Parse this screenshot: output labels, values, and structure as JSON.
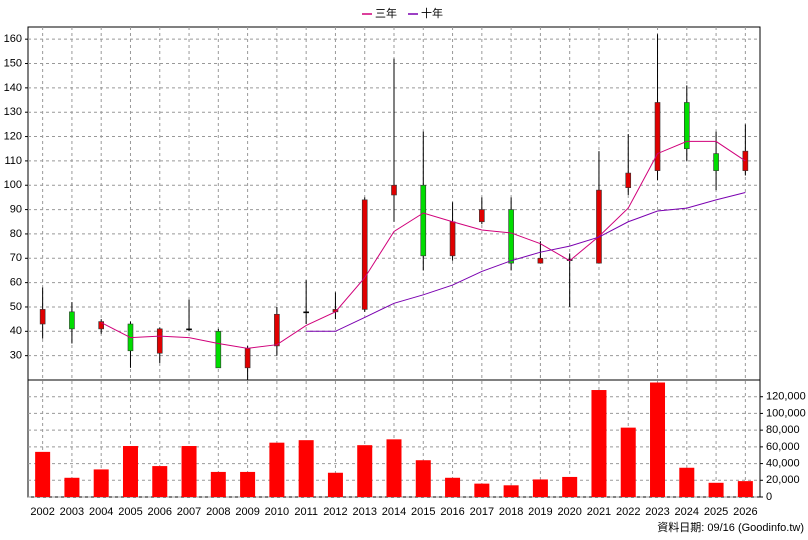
{
  "chart_data": {
    "type": "candlestick",
    "categories": [
      "2002",
      "2003",
      "2004",
      "2005",
      "2006",
      "2007",
      "2008",
      "2009",
      "2010",
      "2011",
      "2012",
      "2013",
      "2014",
      "2015",
      "2016",
      "2017",
      "2018",
      "2019",
      "2020",
      "2021",
      "2022",
      "2023",
      "2024",
      "2025",
      "2026"
    ],
    "open": [
      43,
      48,
      41,
      43,
      31,
      41,
      40,
      25,
      34,
      48,
      48,
      49,
      96,
      100,
      71,
      85,
      90,
      68,
      69.5,
      68,
      99,
      106,
      134,
      113,
      106
    ],
    "high": [
      58,
      52,
      45,
      44,
      41.5,
      53,
      41,
      34,
      50,
      61,
      56,
      95,
      152,
      122,
      93,
      95,
      95,
      77,
      72,
      114,
      121,
      162,
      141,
      122,
      125
    ],
    "low": [
      37,
      35,
      39,
      25,
      27,
      40,
      25,
      20,
      30,
      43,
      45,
      48,
      85,
      65,
      69,
      84,
      65,
      68,
      50,
      68,
      96,
      102,
      110,
      98,
      104
    ],
    "close": [
      49,
      41,
      44,
      32,
      41,
      41,
      25,
      33,
      47,
      48,
      49,
      94,
      100,
      71,
      85,
      90,
      68,
      70,
      69.5,
      98,
      105,
      134,
      115,
      106,
      114
    ],
    "up_color": "#e00000",
    "down_color": "#00dd00",
    "ylim": [
      20,
      165
    ],
    "yticks": [
      30,
      40,
      50,
      60,
      70,
      80,
      90,
      100,
      110,
      120,
      130,
      140,
      150,
      160
    ],
    "grid": true,
    "series": [
      {
        "name": "三年",
        "color": "#d0007a",
        "values": [
          null,
          null,
          43.6,
          37.4,
          38,
          37.4,
          35,
          33,
          34.5,
          42.4,
          48,
          62,
          81,
          88.6,
          85,
          81.6,
          80.4,
          76,
          69,
          79,
          90.6,
          113,
          118,
          118,
          110
        ]
      },
      {
        "name": "十年",
        "color": "#7a00b0",
        "values": [
          null,
          null,
          null,
          null,
          null,
          null,
          null,
          null,
          null,
          40,
          40,
          45.7,
          51.5,
          55,
          59,
          64.6,
          69,
          72.5,
          75,
          78.7,
          85,
          89.4,
          90.6,
          94,
          97
        ]
      }
    ],
    "volume": {
      "type": "bar",
      "color": "#ff0000",
      "values": [
        54000,
        23000,
        33000,
        61000,
        37000,
        61000,
        30000,
        30000,
        65000,
        68000,
        29000,
        62000,
        69000,
        44000,
        23000,
        16000,
        14000,
        21000,
        24000,
        128000,
        83000,
        137000,
        35000,
        17000,
        19000
      ],
      "ylim": [
        0,
        140000
      ],
      "yticks": [
        0,
        {
          "value": 20000,
          "label": "20,000"
        },
        {
          "value": 40000,
          "label": "40,000"
        },
        {
          "value": 60000,
          "label": "60,000"
        },
        {
          "value": 80000,
          "label": "80,000"
        },
        {
          "value": 100000,
          "label": "100,000"
        },
        {
          "value": 120000,
          "label": "120,000"
        }
      ]
    },
    "footnote": "資料日期: 09/16 (Goodinfo.tw)"
  }
}
